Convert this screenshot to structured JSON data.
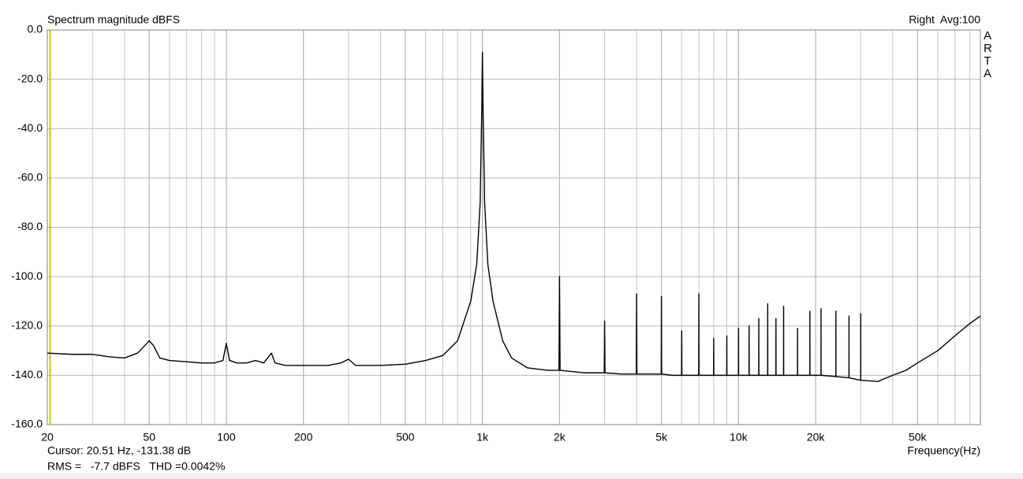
{
  "chart_data": {
    "type": "line",
    "title": "Spectrum magnitude dBFS",
    "channel_label": "Right  Avg:100",
    "side_label": "ARTA",
    "x_label": "Frequency(Hz)",
    "cursor_text": "Cursor: 20.51 Hz, -131.38 dB",
    "cursor_x": 20.51,
    "cursor_color": "#c8c800",
    "rms_text": "RMS =   -7.7 dBFS   THD =0.0042%",
    "rms_color": "#d00000",
    "log_x": true,
    "grid": true,
    "minor_grid": true,
    "xlim": [
      20,
      88000
    ],
    "ylim": [
      -160,
      0
    ],
    "xticks": [
      20,
      50,
      100,
      200,
      500,
      {
        "value": 1000,
        "label": "1k"
      },
      {
        "value": 2000,
        "label": "2k"
      },
      {
        "value": 5000,
        "label": "5k"
      },
      {
        "value": 10000,
        "label": "10k"
      },
      {
        "value": 20000,
        "label": "20k"
      },
      {
        "value": 50000,
        "label": "50k"
      }
    ],
    "yticks": [
      {
        "value": 0,
        "label": "0.0"
      },
      {
        "value": -20,
        "label": "-20.0"
      },
      {
        "value": -40,
        "label": "-40.0"
      },
      {
        "value": -60,
        "label": "-60.0"
      },
      {
        "value": -80,
        "label": "-80.0"
      },
      {
        "value": -100,
        "label": "-100.0"
      },
      {
        "value": -120,
        "label": "-120.0"
      },
      {
        "value": -140,
        "label": "-140.0"
      },
      {
        "value": -160,
        "label": "-160.0"
      }
    ],
    "x": [
      20,
      25,
      30,
      35,
      40,
      45,
      48,
      50,
      52,
      55,
      60,
      70,
      80,
      90,
      97,
      100,
      103,
      110,
      120,
      130,
      140,
      150,
      155,
      170,
      200,
      250,
      280,
      300,
      320,
      400,
      500,
      600,
      700,
      800,
      900,
      950,
      980,
      995,
      1000,
      1005,
      1020,
      1050,
      1100,
      1200,
      1300,
      1500,
      1800,
      1990,
      2000,
      2010,
      2500,
      2990,
      3000,
      3010,
      3500,
      3990,
      4000,
      4010,
      4500,
      4990,
      5000,
      5010,
      5500,
      5990,
      6000,
      6010,
      6500,
      6990,
      7000,
      7010,
      7500,
      7990,
      8000,
      8010,
      8990,
      9000,
      9010,
      9990,
      10000,
      10010,
      10990,
      11000,
      11010,
      11990,
      12000,
      12010,
      12990,
      13000,
      13010,
      13990,
      14000,
      14010,
      14990,
      15000,
      15010,
      16990,
      17000,
      17010,
      18990,
      19000,
      19010,
      20990,
      21000,
      21010,
      23990,
      24000,
      24010,
      26990,
      27000,
      27010,
      29990,
      30000,
      30010,
      35000,
      40000,
      45000,
      50000,
      60000,
      70000,
      80000,
      88000
    ],
    "series": [
      {
        "color": "#000000",
        "values": [
          -131,
          -131.5,
          -131.5,
          -132.5,
          -133,
          -131,
          -128,
          -126,
          -128,
          -133,
          -134,
          -134.5,
          -135,
          -135,
          -134,
          -127,
          -134,
          -135,
          -135,
          -134,
          -135,
          -131,
          -135,
          -136,
          -136,
          -136,
          -135,
          -133.5,
          -136,
          -136,
          -135.5,
          -134,
          -132,
          -126,
          -110,
          -95,
          -70,
          -30,
          -9,
          -30,
          -70,
          -95,
          -110,
          -126,
          -133,
          -137,
          -138,
          -138,
          -100,
          -138,
          -139,
          -139,
          -118,
          -139,
          -139.5,
          -139.5,
          -107,
          -139.5,
          -139.5,
          -139.5,
          -108,
          -139.5,
          -140,
          -140,
          -122,
          -140,
          -140,
          -140,
          -107,
          -140,
          -140,
          -140,
          -125,
          -140,
          -140,
          -124,
          -140,
          -140,
          -121,
          -140,
          -140,
          -120,
          -140,
          -140,
          -117,
          -140,
          -140,
          -111,
          -140,
          -140,
          -117,
          -140,
          -140,
          -112,
          -140,
          -140,
          -121,
          -140,
          -140,
          -114,
          -140,
          -140,
          -113,
          -140,
          -140.5,
          -114,
          -140.5,
          -141,
          -116,
          -141,
          -142,
          -115,
          -142,
          -142.5,
          -140,
          -138,
          -135,
          -130,
          -124,
          -119,
          -116
        ]
      }
    ]
  }
}
